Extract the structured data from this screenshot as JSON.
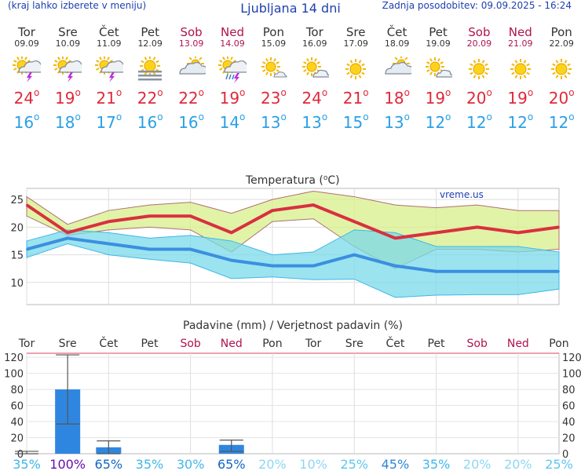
{
  "header": {
    "menu_hint": "(kraj lahko izberete v meniju)",
    "title": "Ljubljana 14 dni",
    "updated": "Zadnja posodobitev: 09.09.2025 - 16:24"
  },
  "days": [
    {
      "name": "Tor",
      "date": "09.09",
      "weekend": false,
      "icon": "sun-cloud-thunder-icon",
      "max": "24",
      "min": "16"
    },
    {
      "name": "Sre",
      "date": "10.09",
      "weekend": false,
      "icon": "sun-cloud-thunder-icon",
      "max": "19",
      "min": "18"
    },
    {
      "name": "Čet",
      "date": "11.09",
      "weekend": false,
      "icon": "sun-cloud-thunder-icon",
      "max": "21",
      "min": "17"
    },
    {
      "name": "Pet",
      "date": "12.09",
      "weekend": false,
      "icon": "sun-fog-icon",
      "max": "22",
      "min": "16"
    },
    {
      "name": "Sob",
      "date": "13.09",
      "weekend": true,
      "icon": "cloud-sun-icon",
      "max": "22",
      "min": "16"
    },
    {
      "name": "Ned",
      "date": "14.09",
      "weekend": true,
      "icon": "sun-cloud-rain-thunder-icon",
      "max": "19",
      "min": "14"
    },
    {
      "name": "Pon",
      "date": "15.09",
      "weekend": false,
      "icon": "sun-small-cloud-icon",
      "max": "23",
      "min": "13"
    },
    {
      "name": "Tor",
      "date": "16.09",
      "weekend": false,
      "icon": "sun-cloud-icon",
      "max": "24",
      "min": "13"
    },
    {
      "name": "Sre",
      "date": "17.09",
      "weekend": false,
      "icon": "sun-icon",
      "max": "21",
      "min": "15"
    },
    {
      "name": "Čet",
      "date": "18.09",
      "weekend": false,
      "icon": "cloud-sun-icon",
      "max": "18",
      "min": "13"
    },
    {
      "name": "Pet",
      "date": "19.09",
      "weekend": false,
      "icon": "sun-cloud-icon",
      "max": "19",
      "min": "12"
    },
    {
      "name": "Sob",
      "date": "20.09",
      "weekend": true,
      "icon": "sun-icon",
      "max": "20",
      "min": "12"
    },
    {
      "name": "Ned",
      "date": "21.09",
      "weekend": true,
      "icon": "sun-icon",
      "max": "19",
      "min": "12"
    },
    {
      "name": "Pon",
      "date": "22.09",
      "weekend": false,
      "icon": "sun-icon",
      "max": "20",
      "min": "12"
    }
  ],
  "colors": {
    "max": "#e0283a",
    "min": "#2aa0e6",
    "weekend": "#b0124f",
    "header": "#1f3fb0"
  },
  "chart_data": [
    {
      "type": "line",
      "title": "Temperatura (°C)",
      "title_base": "Temperatura (",
      "title_unit_o": "o",
      "title_unit_c": "C)",
      "watermark": "vreme.us",
      "ylim": [
        6,
        27
      ],
      "yticks": [
        10,
        15,
        20,
        25
      ],
      "series": [
        {
          "name": "max",
          "values": [
            24,
            19,
            21,
            22,
            22,
            19,
            23,
            24,
            21,
            18,
            19,
            20,
            19,
            20
          ]
        },
        {
          "name": "min",
          "values": [
            16,
            18,
            17,
            16,
            16,
            14,
            13,
            13,
            15,
            13,
            12,
            12,
            12,
            12
          ]
        },
        {
          "name": "max_upper",
          "values": [
            25.5,
            20.5,
            23,
            24,
            24.5,
            22.5,
            25,
            26.5,
            25.5,
            24,
            23.5,
            24,
            23,
            23
          ]
        },
        {
          "name": "max_lower",
          "values": [
            22,
            18.5,
            19.5,
            20,
            19.5,
            15.5,
            21,
            21.5,
            16.5,
            12.5,
            16,
            16,
            15.5,
            16
          ]
        },
        {
          "name": "min_upper",
          "values": [
            17.5,
            19.5,
            19,
            18,
            18.5,
            17.5,
            15,
            15.5,
            19.5,
            19,
            16.5,
            16.5,
            16.5,
            15.5
          ]
        },
        {
          "name": "min_lower",
          "values": [
            14.5,
            17,
            15,
            14.2,
            13.5,
            10.7,
            11,
            10.5,
            10.6,
            7.3,
            7.7,
            7.8,
            7.8,
            8.8
          ]
        }
      ]
    },
    {
      "type": "bar",
      "title": "Padavine (mm) / Verjetnost padavin (%)",
      "categories": [
        "Tor",
        "Sre",
        "Čet",
        "Pet",
        "Sob",
        "Ned",
        "Pon",
        "Tor",
        "Sre",
        "Čet",
        "Pet",
        "Sob",
        "Ned",
        "Pon"
      ],
      "weekend": [
        false,
        false,
        false,
        false,
        true,
        true,
        false,
        false,
        false,
        false,
        false,
        true,
        true,
        false
      ],
      "values": [
        0,
        80,
        8,
        0,
        0,
        11,
        0,
        0,
        0,
        0,
        0,
        0,
        0,
        0
      ],
      "err_low": [
        0,
        37,
        0,
        0,
        0,
        3,
        0,
        0,
        0,
        0,
        0,
        0,
        0,
        0
      ],
      "err_high": [
        3,
        123,
        16,
        0,
        0,
        17,
        0,
        0,
        0,
        0,
        0,
        0,
        0,
        0
      ],
      "probability": [
        "35%",
        "100%",
        "65%",
        "35%",
        "30%",
        "65%",
        "20%",
        "10%",
        "25%",
        "45%",
        "35%",
        "20%",
        "20%",
        "25%"
      ],
      "prob_colors": [
        "#3fb7e8",
        "#6a0dad",
        "#1565c0",
        "#3fb7e8",
        "#3fb7e8",
        "#1565c0",
        "#8fd6f2",
        "#8fd6f2",
        "#5ec6ee",
        "#2f86d6",
        "#3fb7e8",
        "#8fd6f2",
        "#8fd6f2",
        "#5ec6ee"
      ],
      "ylim": [
        0,
        125
      ],
      "yticks": [
        0,
        20,
        40,
        60,
        80,
        100,
        120
      ]
    }
  ]
}
